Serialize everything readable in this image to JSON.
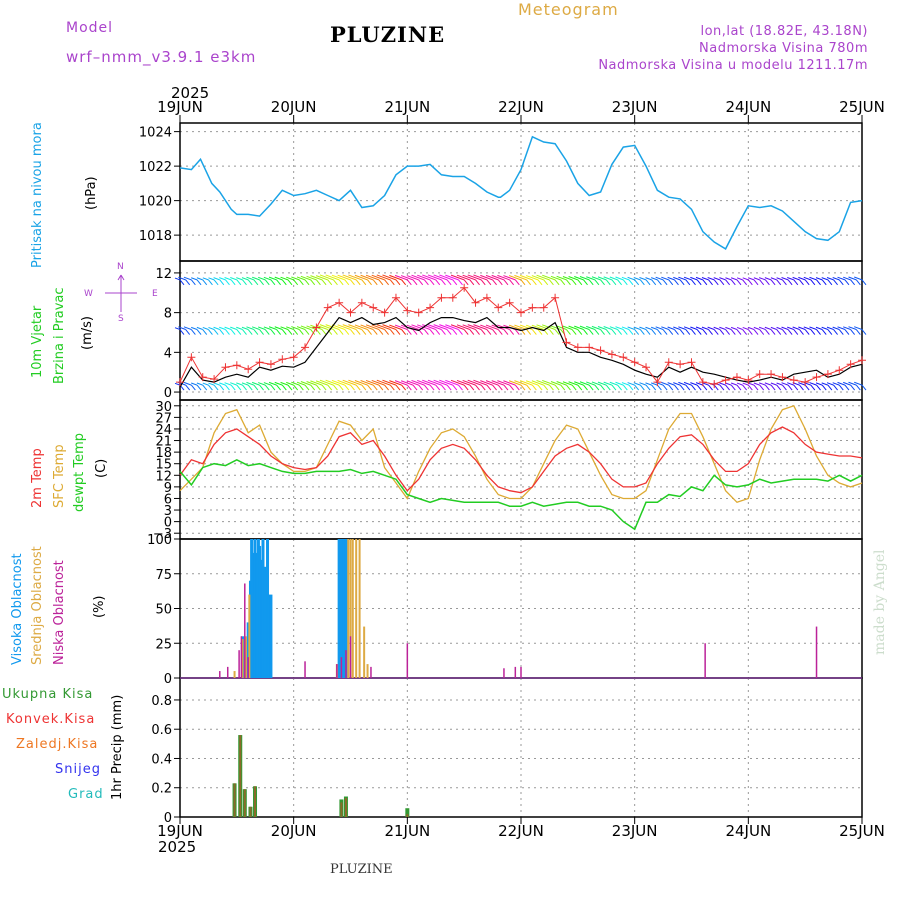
{
  "header": {
    "model_label": "Model",
    "model_value": "wrf–nmm_v3.9.1  e3km",
    "title": "PLUZINE",
    "meteogram": "Meteogram",
    "coords": "lon,lat (18.82E, 43.18N)",
    "elevation": "Nadmorska Visina 780m",
    "model_elevation": "Nadmorska Visina u modelu 1211.17m",
    "year_top": "2025",
    "year_bottom": "2025",
    "footer": "PLUZINE",
    "watermark": "made by Angel"
  },
  "colors": {
    "pressure": "#1aa3e6",
    "temp2m": "#ee3333",
    "sfc": "#ddaa33",
    "dewpt": "#22cc22",
    "high_cloud": "#1199ee",
    "mid_cloud": "#ddaa44",
    "low_cloud": "#bb2299",
    "total_precip": "#339933",
    "conv_precip": "#ee3333",
    "frozen_precip": "#ee7722",
    "snow": "#3333ee",
    "hail": "#22bbbb",
    "purple_text": "#aa44cc"
  },
  "x_axis": {
    "ticks": [
      "19JUN",
      "20JUN",
      "21JUN",
      "22JUN",
      "23JUN",
      "24JUN",
      "25JUN"
    ]
  },
  "chart_data": [
    {
      "type": "line",
      "name": "pressure",
      "ylabel_main": "Pritisak na nivou mora",
      "ylabel_unit": "(hPa)",
      "ylim": [
        1016.5,
        1024.5
      ],
      "yticks": [
        "1024",
        "1022",
        "1020",
        "1018"
      ],
      "x": [
        0,
        0.1,
        0.18,
        0.28,
        0.35,
        0.45,
        0.5,
        0.6,
        0.7,
        0.8,
        0.9,
        1.0,
        1.1,
        1.2,
        1.3,
        1.4,
        1.5,
        1.6,
        1.7,
        1.8,
        1.9,
        2.0,
        2.1,
        2.2,
        2.3,
        2.4,
        2.5,
        2.6,
        2.7,
        2.8,
        2.82,
        2.9,
        3.0,
        3.1,
        3.2,
        3.3,
        3.4,
        3.5,
        3.6,
        3.7,
        3.8,
        3.9,
        4.0,
        4.1,
        4.2,
        4.3,
        4.4,
        4.5,
        4.6,
        4.7,
        4.8,
        4.9,
        5.0,
        5.1,
        5.2,
        5.3,
        5.4,
        5.5,
        5.6,
        5.7,
        5.8,
        5.9,
        6.0
      ],
      "values": [
        1021.9,
        1021.8,
        1022.4,
        1021.0,
        1020.5,
        1019.5,
        1019.2,
        1019.2,
        1019.1,
        1019.8,
        1020.6,
        1020.3,
        1020.4,
        1020.6,
        1020.3,
        1020.0,
        1020.6,
        1019.6,
        1019.7,
        1020.3,
        1021.5,
        1022.0,
        1022.0,
        1022.1,
        1021.5,
        1021.4,
        1021.4,
        1021.0,
        1020.5,
        1020.2,
        1020.2,
        1020.6,
        1021.8,
        1023.7,
        1023.4,
        1023.3,
        1022.3,
        1021.0,
        1020.3,
        1020.5,
        1022.1,
        1023.1,
        1023.2,
        1022.0,
        1020.6,
        1020.2,
        1020.1,
        1019.5,
        1018.2,
        1017.6,
        1017.2,
        1018.5,
        1019.7,
        1019.6,
        1019.7,
        1019.4,
        1018.8,
        1018.2,
        1017.8,
        1017.7,
        1018.2,
        1019.9,
        1020.0
      ]
    },
    {
      "type": "line",
      "name": "wind",
      "ylabel_main": "10m Vjetar",
      "ylabel_sub": "Brzina i Pravac",
      "ylabel_unit": "(m/s)",
      "compass": {
        "n": "N",
        "s": "S",
        "w": "W",
        "e": "E"
      },
      "ylim": [
        -0.8,
        13.2
      ],
      "yticks": [
        "12",
        "8",
        "4",
        "0"
      ],
      "speed_x": [
        0,
        0.1,
        0.2,
        0.3,
        0.4,
        0.5,
        0.6,
        0.7,
        0.8,
        0.9,
        1.0,
        1.1,
        1.2,
        1.3,
        1.4,
        1.5,
        1.6,
        1.7,
        1.8,
        1.9,
        2.0,
        2.1,
        2.2,
        2.3,
        2.4,
        2.5,
        2.6,
        2.7,
        2.8,
        2.9,
        3.0,
        3.1,
        3.2,
        3.3,
        3.4,
        3.5,
        3.6,
        3.7,
        3.8,
        3.9,
        4.0,
        4.1,
        4.2,
        4.3,
        4.4,
        4.5,
        4.6,
        4.7,
        4.8,
        4.9,
        5.0,
        5.1,
        5.2,
        5.3,
        5.4,
        5.5,
        5.6,
        5.7,
        5.8,
        5.9,
        6.0
      ],
      "speed": [
        0.5,
        2.5,
        1.2,
        1.0,
        1.5,
        1.8,
        1.5,
        2.5,
        2.2,
        2.6,
        2.5,
        3.0,
        4.5,
        6.0,
        7.5,
        7.0,
        7.5,
        6.8,
        7.0,
        7.5,
        6.5,
        6.2,
        7.0,
        7.5,
        7.5,
        7.2,
        7.0,
        7.5,
        6.5,
        6.5,
        6.2,
        6.5,
        6.2,
        7.0,
        4.5,
        4.0,
        4.0,
        3.5,
        3.2,
        2.8,
        2.2,
        1.8,
        1.5,
        2.5,
        2.0,
        2.5,
        2.0,
        1.8,
        1.5,
        1.2,
        1.0,
        1.2,
        1.5,
        1.2,
        1.8,
        2.0,
        2.2,
        1.5,
        1.8,
        2.5,
        2.8
      ],
      "gust": [
        1.0,
        3.5,
        1.5,
        1.3,
        2.5,
        2.7,
        2.3,
        3.0,
        2.8,
        3.3,
        3.5,
        4.5,
        6.5,
        8.5,
        9.0,
        8.0,
        9.0,
        8.5,
        8.0,
        9.5,
        8.2,
        8.0,
        8.5,
        9.5,
        9.5,
        10.5,
        9.0,
        9.5,
        8.5,
        9.0,
        8.0,
        8.5,
        8.5,
        9.5,
        5.0,
        4.5,
        4.5,
        4.2,
        3.8,
        3.5,
        3.0,
        2.5,
        1.0,
        3.0,
        2.8,
        3.0,
        1.0,
        0.8,
        1.2,
        1.5,
        1.2,
        1.8,
        1.8,
        1.5,
        1.2,
        1.0,
        1.5,
        1.8,
        2.2,
        2.8,
        3.2
      ]
    },
    {
      "type": "line",
      "name": "temperature",
      "ylabel_a": "2m Temp",
      "ylabel_b": "SFC Temp",
      "ylabel_c": "dewpt Temp",
      "ylabel_unit": "(C)",
      "ylim": [
        -4.5,
        31.5
      ],
      "yticks": [
        "30",
        "27",
        "24",
        "21",
        "18",
        "15",
        "12",
        "9",
        "6",
        "3",
        "0",
        "−3"
      ],
      "x": [
        0,
        0.1,
        0.2,
        0.3,
        0.4,
        0.5,
        0.6,
        0.7,
        0.8,
        0.9,
        1.0,
        1.1,
        1.2,
        1.3,
        1.4,
        1.5,
        1.6,
        1.7,
        1.8,
        1.9,
        2.0,
        2.1,
        2.2,
        2.3,
        2.4,
        2.5,
        2.6,
        2.7,
        2.8,
        2.9,
        3.0,
        3.1,
        3.2,
        3.3,
        3.4,
        3.5,
        3.6,
        3.7,
        3.8,
        3.9,
        4.0,
        4.1,
        4.2,
        4.3,
        4.4,
        4.5,
        4.6,
        4.7,
        4.8,
        4.9,
        5.0,
        5.1,
        5.2,
        5.3,
        5.4,
        5.5,
        5.6,
        5.7,
        5.8,
        5.9,
        6.0
      ],
      "t2m": [
        12,
        16,
        15,
        20,
        23,
        24,
        22,
        20,
        17,
        15,
        14,
        13.5,
        14,
        17,
        22,
        23,
        20,
        21,
        17,
        12,
        8,
        11,
        16,
        19,
        20,
        19,
        16,
        12,
        9,
        8,
        7.5,
        9,
        13,
        17,
        19,
        20,
        18,
        15,
        11,
        9,
        9,
        10,
        15,
        19,
        22,
        22.5,
        20,
        16,
        13,
        13,
        15,
        20,
        23,
        24.5,
        23,
        20,
        18,
        17.5,
        17,
        17,
        16.5
      ],
      "sfc": [
        8,
        11,
        14,
        23,
        28,
        29,
        23,
        25,
        18,
        15,
        13,
        13,
        14,
        20,
        26,
        25,
        21,
        24,
        14,
        10,
        6,
        13,
        19,
        23,
        24,
        22,
        17,
        11,
        7,
        6,
        6,
        9,
        15,
        21,
        25,
        24,
        18,
        12,
        7,
        6,
        6,
        8,
        16,
        24,
        28,
        28,
        22,
        15,
        8,
        5,
        6,
        16,
        24,
        29,
        30,
        24,
        17,
        12,
        10,
        9,
        10
      ],
      "dewpt": [
        13,
        9.5,
        14,
        15,
        14.5,
        16,
        14.5,
        15,
        14,
        13,
        12.5,
        12.5,
        13,
        13,
        13,
        13.5,
        12.5,
        13,
        12,
        11,
        7,
        6,
        5,
        6,
        5.5,
        5,
        5,
        5,
        5,
        4,
        4,
        5,
        4,
        4.5,
        5,
        5,
        4,
        4,
        3,
        0,
        -2,
        5,
        5,
        7,
        6.5,
        9,
        8,
        12,
        9.5,
        9,
        9.5,
        11,
        10,
        10.5,
        11,
        11,
        11,
        10.5,
        12,
        10.5,
        12
      ]
    },
    {
      "type": "bar",
      "name": "clouds",
      "ylabel_high": "Visoka Oblacnost",
      "ylabel_mid": "Srednja Oblacnost",
      "ylabel_low": "Niska Oblacnost",
      "ylabel_unit": "(%)",
      "ylim": [
        0,
        100
      ],
      "yticks": [
        "100",
        "75",
        "50",
        "25",
        "0"
      ],
      "high": [
        [
          0.55,
          30
        ],
        [
          0.6,
          40
        ],
        [
          0.62,
          70
        ],
        [
          0.63,
          100
        ],
        [
          0.65,
          90
        ],
        [
          0.66,
          100
        ],
        [
          0.68,
          90
        ],
        [
          0.69,
          100
        ],
        [
          0.7,
          95
        ],
        [
          0.72,
          85
        ],
        [
          0.73,
          100
        ],
        [
          0.75,
          80
        ],
        [
          0.77,
          100
        ],
        [
          0.78,
          60
        ],
        [
          0.8,
          60
        ],
        [
          1.4,
          100
        ],
        [
          1.42,
          100
        ],
        [
          1.44,
          100
        ],
        [
          1.46,
          100
        ]
      ],
      "mid": [
        [
          0.48,
          5
        ],
        [
          0.55,
          28
        ],
        [
          0.58,
          30
        ],
        [
          0.61,
          60
        ],
        [
          1.38,
          10
        ],
        [
          1.48,
          100
        ],
        [
          1.5,
          100
        ],
        [
          1.52,
          100
        ],
        [
          1.55,
          100
        ],
        [
          1.58,
          100
        ],
        [
          1.62,
          37
        ],
        [
          1.65,
          10
        ]
      ],
      "low": [
        [
          0.35,
          5
        ],
        [
          0.42,
          8
        ],
        [
          0.52,
          20
        ],
        [
          0.54,
          30
        ],
        [
          0.57,
          68
        ],
        [
          0.6,
          15
        ],
        [
          1.1,
          12
        ],
        [
          1.38,
          10
        ],
        [
          1.42,
          15
        ],
        [
          1.46,
          20
        ],
        [
          1.5,
          30
        ],
        [
          1.68,
          8
        ],
        [
          2.0,
          25
        ],
        [
          2.85,
          7
        ],
        [
          2.95,
          8
        ],
        [
          3.0,
          8
        ],
        [
          4.62,
          25
        ],
        [
          5.6,
          37
        ]
      ]
    },
    {
      "type": "bar",
      "name": "precipitation",
      "ylabel_total": "Ukupna Kisa",
      "ylabel_conv": "Konvek.Kisa",
      "ylabel_frozen": "Zaledj.Kisa",
      "ylabel_snow": "Snijeg",
      "ylabel_hail": "Grad",
      "ylabel_unit": "1hr Precip (mm)",
      "ylim": [
        0,
        0.95
      ],
      "yticks": [
        "0.8",
        "0.6",
        "0.4",
        "0.2",
        "0"
      ],
      "total": [
        [
          0.48,
          0.23
        ],
        [
          0.53,
          0.56
        ],
        [
          0.57,
          0.19
        ],
        [
          0.62,
          0.07
        ],
        [
          0.66,
          0.21
        ],
        [
          1.42,
          0.12
        ],
        [
          1.46,
          0.14
        ],
        [
          2.0,
          0.06
        ]
      ],
      "conv": [
        [
          0.48,
          0.23
        ],
        [
          0.53,
          0.56
        ],
        [
          0.57,
          0.19
        ],
        [
          0.62,
          0.07
        ],
        [
          0.66,
          0.21
        ],
        [
          1.42,
          0.1
        ],
        [
          1.46,
          0.13
        ],
        [
          2.0,
          0.02
        ]
      ]
    }
  ]
}
